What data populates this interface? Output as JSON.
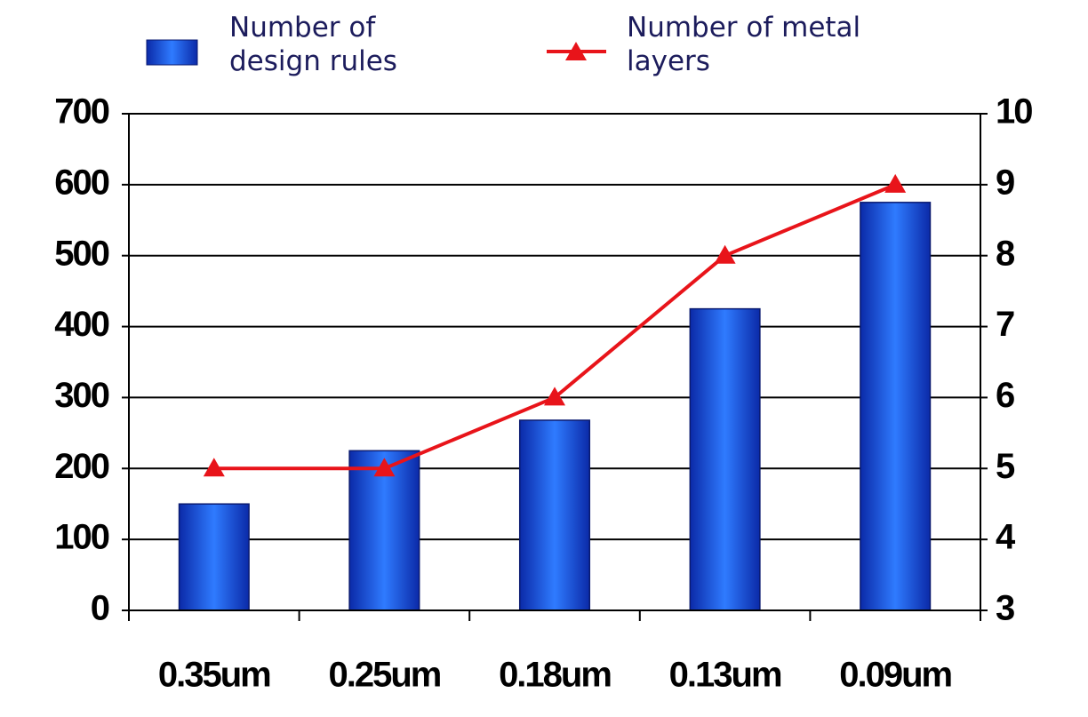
{
  "chart_data": {
    "type": "bar-line",
    "categories": [
      "0.35um",
      "0.25um",
      "0.18um",
      "0.13um",
      "0.09um"
    ],
    "series": [
      {
        "name": "Number of design rules",
        "type": "bar",
        "color": "#2f7bff",
        "values": [
          150,
          225,
          268,
          425,
          575
        ]
      },
      {
        "name": "Number of metal layers",
        "type": "line",
        "axis": "y2",
        "color": "#e8141a",
        "values": [
          5,
          5,
          6,
          8,
          9
        ]
      }
    ],
    "ylim": [
      0,
      700
    ],
    "yticks": [
      0,
      100,
      200,
      300,
      400,
      500,
      600,
      700
    ],
    "y2lim": [
      3,
      10
    ],
    "y2ticks": [
      3,
      4,
      5,
      6,
      7,
      8,
      9,
      10
    ],
    "grid": true
  }
}
